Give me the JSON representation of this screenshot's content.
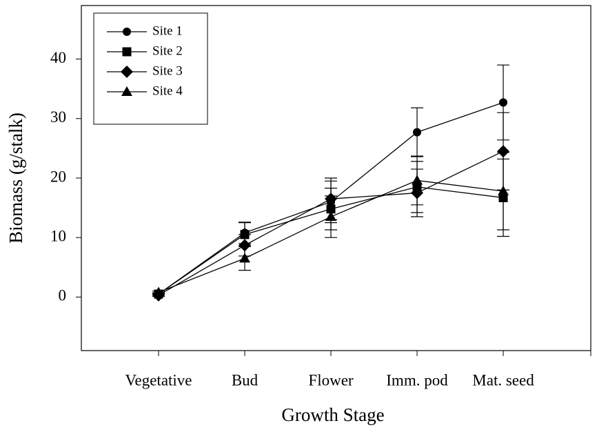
{
  "chart_data": {
    "type": "line",
    "xlabel": "Growth Stage",
    "ylabel": "Biomass (g/stalk)",
    "categories": [
      "Vegetative",
      "Bud",
      "Flower",
      "Imm. pod",
      "Mat. seed"
    ],
    "ylim": [
      -9,
      49
    ],
    "yticks": [
      0,
      10,
      20,
      30,
      40
    ],
    "legend": "upper left",
    "series": [
      {
        "name": "Site 1",
        "color": "#000000",
        "marker": "circle",
        "values": [
          0.5,
          10.8,
          16.0,
          27.7,
          32.7
        ],
        "errors": [
          0.2,
          1.8,
          3.5,
          4.1,
          6.3
        ]
      },
      {
        "name": "Site 2",
        "color": "#000000",
        "marker": "square",
        "values": [
          0.5,
          10.5,
          14.8,
          18.5,
          16.7
        ],
        "errors": [
          0.2,
          2.0,
          3.5,
          4.3,
          6.5
        ]
      },
      {
        "name": "Site 3",
        "color": "#000000",
        "marker": "diamond",
        "values": [
          0.3,
          8.7,
          16.5,
          17.5,
          24.5
        ],
        "errors": [
          0.2,
          1.8,
          3.5,
          4.0,
          6.5
        ]
      },
      {
        "name": "Site 4",
        "color": "#000000",
        "marker": "triangle",
        "values": [
          0.8,
          6.5,
          13.5,
          19.6,
          17.8
        ],
        "errors": [
          0.2,
          2.0,
          3.5,
          4.1,
          6.5
        ]
      }
    ]
  }
}
